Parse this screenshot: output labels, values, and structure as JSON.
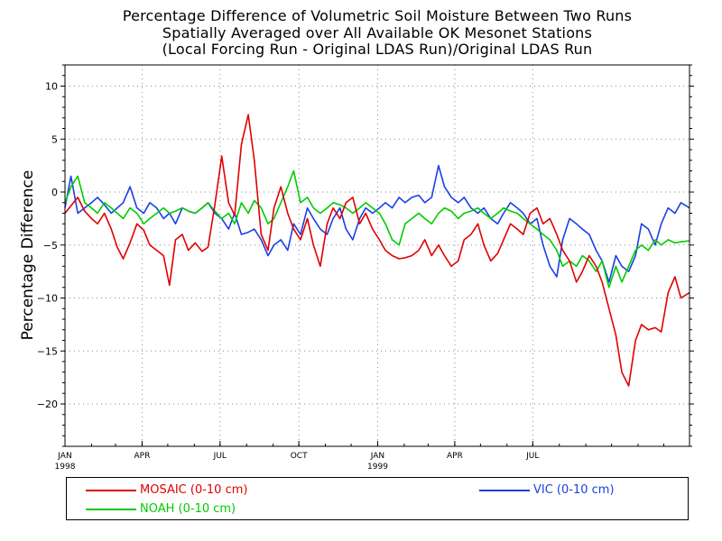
{
  "chart_data": {
    "type": "line",
    "title": [
      "Percentage Difference of Volumetric Soil Moisture Between Two Runs",
      "Spatially Averaged over All Available OK Mesonet Stations",
      "(Local Forcing Run - Original LDAS Run)/Original LDAS Run"
    ],
    "xlabel": "",
    "ylabel": "Percentage Difference",
    "ylim": [
      -24,
      12
    ],
    "xlim": [
      "1998-01-01",
      "1999-12-31"
    ],
    "yticks": [
      10,
      5,
      0,
      -5,
      -10,
      -15,
      -20
    ],
    "ytick_labels": [
      "10",
      "5",
      "0",
      "−5",
      "−10",
      "−15",
      "−20"
    ],
    "xticks": [
      "1998-01-01",
      "1998-04-01",
      "1998-07-01",
      "1998-10-01",
      "1999-01-01",
      "1999-04-01",
      "1999-07-01"
    ],
    "xtick_labels": [
      "JAN",
      "APR",
      "JUL",
      "OCT",
      "JAN",
      "APR",
      "JUL"
    ],
    "xtick_years": [
      "1998",
      "",
      "",
      "",
      "1999",
      "",
      ""
    ],
    "grid": true,
    "legend_placement": "bottom",
    "series": [
      {
        "name": "MOSAIC (0-10 cm)",
        "color": "#e00000",
        "x": [
          "1998-01-01",
          "1998-01-08",
          "1998-01-16",
          "1998-01-24",
          "1998-02-01",
          "1998-02-08",
          "1998-02-16",
          "1998-02-24",
          "1998-03-03",
          "1998-03-10",
          "1998-03-18",
          "1998-03-26",
          "1998-04-03",
          "1998-04-10",
          "1998-04-18",
          "1998-04-26",
          "1998-05-03",
          "1998-05-10",
          "1998-05-18",
          "1998-05-25",
          "1998-06-02",
          "1998-06-10",
          "1998-06-17",
          "1998-06-25",
          "1998-07-03",
          "1998-07-11",
          "1998-07-18",
          "1998-07-26",
          "1998-08-03",
          "1998-08-10",
          "1998-08-18",
          "1998-08-26",
          "1998-09-02",
          "1998-09-10",
          "1998-09-18",
          "1998-09-25",
          "1998-10-03",
          "1998-10-11",
          "1998-10-18",
          "1998-10-26",
          "1998-11-03",
          "1998-11-10",
          "1998-11-18",
          "1998-11-25",
          "1998-12-03",
          "1998-12-11",
          "1998-12-18",
          "1998-12-26",
          "1999-01-03",
          "1999-01-10",
          "1999-01-18",
          "1999-01-26",
          "1999-02-02",
          "1999-02-10",
          "1999-02-18",
          "1999-02-25",
          "1999-03-05",
          "1999-03-13",
          "1999-03-20",
          "1999-03-28",
          "1999-04-05",
          "1999-04-12",
          "1999-04-20",
          "1999-04-28",
          "1999-05-05",
          "1999-05-13",
          "1999-05-21",
          "1999-05-28",
          "1999-06-05",
          "1999-06-13",
          "1999-06-20",
          "1999-06-28",
          "1999-07-06",
          "1999-07-13",
          "1999-07-21",
          "1999-07-29",
          "1999-08-05",
          "1999-08-13",
          "1999-08-21",
          "1999-08-28",
          "1999-09-05",
          "1999-09-13",
          "1999-09-20",
          "1999-09-28",
          "1999-10-06",
          "1999-10-13",
          "1999-10-21",
          "1999-10-29",
          "1999-11-05",
          "1999-11-13",
          "1999-11-21",
          "1999-11-28",
          "1999-12-06",
          "1999-12-14",
          "1999-12-21",
          "1999-12-31"
        ],
        "values": [
          -2.0,
          -1.3,
          -0.5,
          -1.8,
          -2.5,
          -3.0,
          -2.0,
          -3.5,
          -5.2,
          -6.3,
          -4.8,
          -3.0,
          -3.6,
          -5.0,
          -5.5,
          -6.0,
          -8.8,
          -4.5,
          -4.0,
          -5.5,
          -4.8,
          -5.6,
          -5.2,
          -1.2,
          3.4,
          -1.0,
          -2.2,
          4.5,
          7.3,
          3.0,
          -4.0,
          -5.5,
          -1.5,
          0.5,
          -2.0,
          -3.5,
          -4.5,
          -2.5,
          -5.0,
          -7.0,
          -3.0,
          -1.5,
          -2.5,
          -1.0,
          -0.5,
          -3.0,
          -2.0,
          -3.5,
          -4.5,
          -5.5,
          -6.0,
          -6.3,
          -6.2,
          -6.0,
          -5.5,
          -4.5,
          -6.0,
          -5.0,
          -6.0,
          -7.0,
          -6.5,
          -4.5,
          -4.0,
          -3.0,
          -5.0,
          -6.5,
          -5.8,
          -4.5,
          -3.0,
          -3.5,
          -4.0,
          -2.0,
          -1.5,
          -3.0,
          -2.5,
          -4.0,
          -5.5,
          -6.5,
          -8.5,
          -7.5,
          -6.0,
          -7.0,
          -8.5,
          -11.0,
          -13.5,
          -17.0,
          -18.3,
          -14.0,
          -12.5,
          -13.0,
          -12.8,
          -13.2,
          -9.5,
          -8.0,
          -10.0,
          -9.5
        ]
      },
      {
        "name": "VIC (0-10 cm)",
        "color": "#1a3fe6",
        "x": [
          "1998-01-01",
          "1998-01-08",
          "1998-01-16",
          "1998-01-24",
          "1998-02-01",
          "1998-02-08",
          "1998-02-16",
          "1998-02-24",
          "1998-03-03",
          "1998-03-10",
          "1998-03-18",
          "1998-03-26",
          "1998-04-03",
          "1998-04-10",
          "1998-04-18",
          "1998-04-26",
          "1998-05-03",
          "1998-05-10",
          "1998-05-18",
          "1998-05-25",
          "1998-06-02",
          "1998-06-10",
          "1998-06-17",
          "1998-06-25",
          "1998-07-03",
          "1998-07-11",
          "1998-07-18",
          "1998-07-26",
          "1998-08-03",
          "1998-08-10",
          "1998-08-18",
          "1998-08-26",
          "1998-09-02",
          "1998-09-10",
          "1998-09-18",
          "1998-09-25",
          "1998-10-03",
          "1998-10-11",
          "1998-10-18",
          "1998-10-26",
          "1998-11-03",
          "1998-11-10",
          "1998-11-18",
          "1998-11-25",
          "1998-12-03",
          "1998-12-11",
          "1998-12-18",
          "1998-12-26",
          "1999-01-03",
          "1999-01-10",
          "1999-01-18",
          "1999-01-26",
          "1999-02-02",
          "1999-02-10",
          "1999-02-18",
          "1999-02-25",
          "1999-03-05",
          "1999-03-13",
          "1999-03-20",
          "1999-03-28",
          "1999-04-05",
          "1999-04-12",
          "1999-04-20",
          "1999-04-28",
          "1999-05-05",
          "1999-05-13",
          "1999-05-21",
          "1999-05-28",
          "1999-06-05",
          "1999-06-13",
          "1999-06-20",
          "1999-06-28",
          "1999-07-06",
          "1999-07-13",
          "1999-07-21",
          "1999-07-29",
          "1999-08-05",
          "1999-08-13",
          "1999-08-21",
          "1999-08-28",
          "1999-09-05",
          "1999-09-13",
          "1999-09-20",
          "1999-09-28",
          "1999-10-06",
          "1999-10-13",
          "1999-10-21",
          "1999-10-29",
          "1999-11-05",
          "1999-11-13",
          "1999-11-21",
          "1999-11-28",
          "1999-12-06",
          "1999-12-14",
          "1999-12-21",
          "1999-12-31"
        ],
        "values": [
          -1.5,
          1.5,
          -2.0,
          -1.5,
          -1.0,
          -0.5,
          -1.2,
          -2.0,
          -1.5,
          -1.0,
          0.5,
          -1.5,
          -2.0,
          -1.0,
          -1.5,
          -2.5,
          -2.0,
          -3.0,
          -1.5,
          -1.8,
          -2.0,
          -1.5,
          -1.0,
          -2.0,
          -2.5,
          -3.5,
          -2.0,
          -4.0,
          -3.8,
          -3.5,
          -4.5,
          -6.0,
          -5.0,
          -4.5,
          -5.5,
          -3.0,
          -4.0,
          -1.5,
          -2.5,
          -3.5,
          -4.0,
          -2.5,
          -1.5,
          -3.5,
          -4.5,
          -2.5,
          -1.5,
          -2.0,
          -1.5,
          -1.0,
          -1.5,
          -0.5,
          -1.0,
          -0.5,
          -0.3,
          -1.0,
          -0.5,
          2.5,
          0.5,
          -0.5,
          -1.0,
          -0.5,
          -1.5,
          -2.0,
          -1.5,
          -2.5,
          -3.0,
          -2.0,
          -1.0,
          -1.5,
          -2.0,
          -3.0,
          -2.5,
          -5.0,
          -7.0,
          -8.0,
          -4.5,
          -2.5,
          -3.0,
          -3.5,
          -4.0,
          -5.5,
          -6.5,
          -8.5,
          -6.0,
          -7.0,
          -7.5,
          -6.0,
          -3.0,
          -3.5,
          -5.0,
          -3.0,
          -1.5,
          -2.0,
          -1.0,
          -1.5
        ]
      },
      {
        "name": "NOAH (0-10 cm)",
        "color": "#00cc00",
        "x": [
          "1998-01-01",
          "1998-01-08",
          "1998-01-16",
          "1998-01-24",
          "1998-02-01",
          "1998-02-08",
          "1998-02-16",
          "1998-02-24",
          "1998-03-03",
          "1998-03-10",
          "1998-03-18",
          "1998-03-26",
          "1998-04-03",
          "1998-04-10",
          "1998-04-18",
          "1998-04-26",
          "1998-05-03",
          "1998-05-10",
          "1998-05-18",
          "1998-05-25",
          "1998-06-02",
          "1998-06-10",
          "1998-06-17",
          "1998-06-25",
          "1998-07-03",
          "1998-07-11",
          "1998-07-18",
          "1998-07-26",
          "1998-08-03",
          "1998-08-10",
          "1998-08-18",
          "1998-08-26",
          "1998-09-02",
          "1998-09-10",
          "1998-09-18",
          "1998-09-25",
          "1998-10-03",
          "1998-10-11",
          "1998-10-18",
          "1998-10-26",
          "1998-11-03",
          "1998-11-10",
          "1998-11-18",
          "1998-11-25",
          "1998-12-03",
          "1998-12-11",
          "1998-12-18",
          "1998-12-26",
          "1999-01-03",
          "1999-01-10",
          "1999-01-18",
          "1999-01-26",
          "1999-02-02",
          "1999-02-10",
          "1999-02-18",
          "1999-02-25",
          "1999-03-05",
          "1999-03-13",
          "1999-03-20",
          "1999-03-28",
          "1999-04-05",
          "1999-04-12",
          "1999-04-20",
          "1999-04-28",
          "1999-05-05",
          "1999-05-13",
          "1999-05-21",
          "1999-05-28",
          "1999-06-05",
          "1999-06-13",
          "1999-06-20",
          "1999-06-28",
          "1999-07-06",
          "1999-07-13",
          "1999-07-21",
          "1999-07-29",
          "1999-08-05",
          "1999-08-13",
          "1999-08-21",
          "1999-08-28",
          "1999-09-05",
          "1999-09-13",
          "1999-09-20",
          "1999-09-28",
          "1999-10-06",
          "1999-10-13",
          "1999-10-21",
          "1999-10-29",
          "1999-11-05",
          "1999-11-13",
          "1999-11-21",
          "1999-11-28",
          "1999-12-06",
          "1999-12-14",
          "1999-12-21",
          "1999-12-31"
        ],
        "values": [
          -1.0,
          0.5,
          1.5,
          -1.0,
          -1.5,
          -2.0,
          -1.0,
          -1.5,
          -2.0,
          -2.5,
          -1.5,
          -2.0,
          -3.0,
          -2.5,
          -2.0,
          -1.5,
          -2.0,
          -1.8,
          -1.5,
          -1.8,
          -2.0,
          -1.5,
          -1.0,
          -1.8,
          -2.5,
          -2.0,
          -3.0,
          -1.0,
          -2.0,
          -0.8,
          -1.5,
          -3.0,
          -2.5,
          -1.0,
          0.5,
          2.0,
          -1.0,
          -0.5,
          -1.5,
          -2.0,
          -1.5,
          -1.0,
          -1.2,
          -1.5,
          -2.0,
          -1.5,
          -1.0,
          -1.5,
          -2.0,
          -3.0,
          -4.5,
          -5.0,
          -3.0,
          -2.5,
          -2.0,
          -2.5,
          -3.0,
          -2.0,
          -1.5,
          -1.8,
          -2.5,
          -2.0,
          -1.8,
          -1.5,
          -2.0,
          -2.5,
          -2.0,
          -1.5,
          -1.8,
          -2.0,
          -2.5,
          -3.0,
          -3.5,
          -4.0,
          -4.5,
          -5.5,
          -7.0,
          -6.5,
          -7.0,
          -6.0,
          -6.5,
          -7.5,
          -6.5,
          -9.0,
          -7.0,
          -8.5,
          -7.0,
          -5.5,
          -5.0,
          -5.5,
          -4.5,
          -5.0,
          -4.5,
          -4.8,
          -4.7,
          -4.6
        ]
      }
    ]
  }
}
